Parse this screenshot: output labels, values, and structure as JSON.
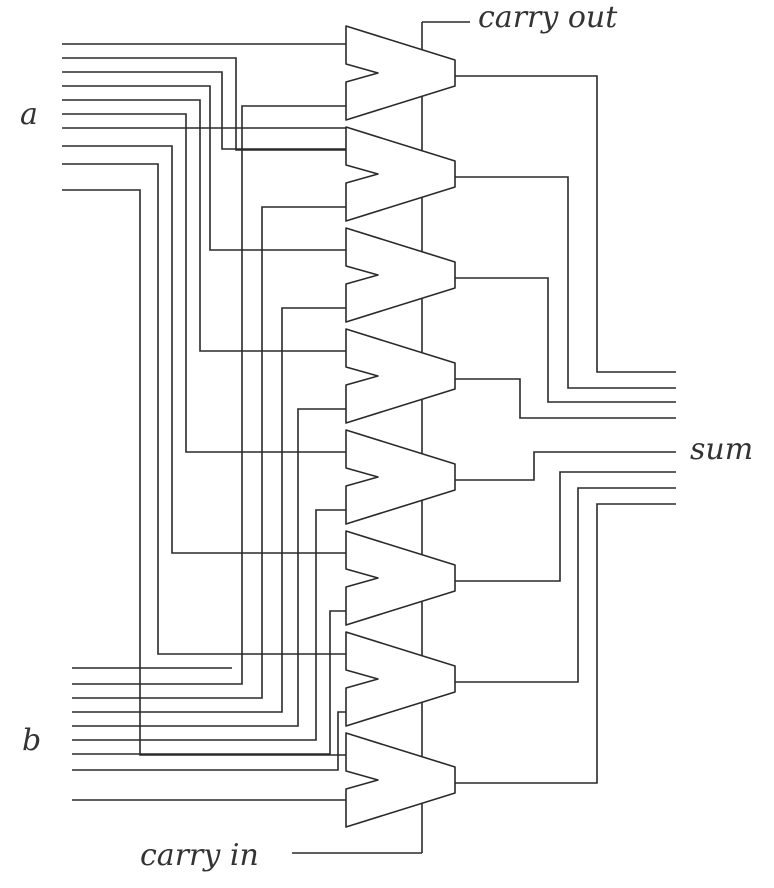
{
  "labels": {
    "carry_out": "carry out",
    "a": "a",
    "sum": "sum",
    "b": "b",
    "carry_in": "carry in"
  },
  "diagram": {
    "adder_count": 8,
    "input_a_bits": 8,
    "input_b_bits": 8,
    "sum_bits": 8
  },
  "colors": {
    "line": "#2a2a2a",
    "text": "#333333",
    "background": "#ffffff"
  }
}
